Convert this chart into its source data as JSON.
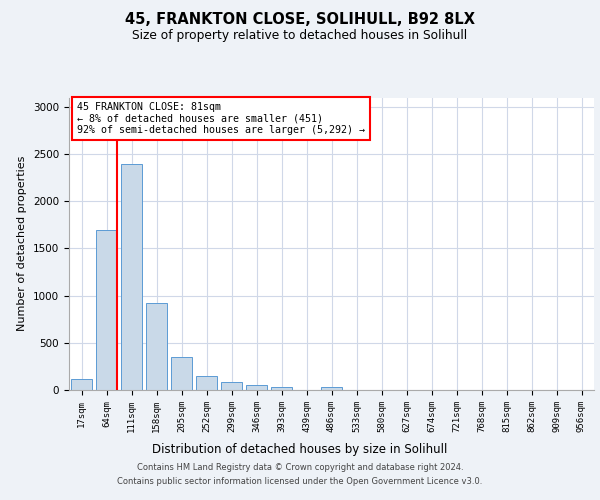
{
  "title_line1": "45, FRANKTON CLOSE, SOLIHULL, B92 8LX",
  "title_line2": "Size of property relative to detached houses in Solihull",
  "xlabel": "Distribution of detached houses by size in Solihull",
  "ylabel": "Number of detached properties",
  "bins": [
    "17sqm",
    "64sqm",
    "111sqm",
    "158sqm",
    "205sqm",
    "252sqm",
    "299sqm",
    "346sqm",
    "393sqm",
    "439sqm",
    "486sqm",
    "533sqm",
    "580sqm",
    "627sqm",
    "674sqm",
    "721sqm",
    "768sqm",
    "815sqm",
    "862sqm",
    "909sqm",
    "956sqm"
  ],
  "values": [
    120,
    1700,
    2390,
    920,
    350,
    150,
    80,
    55,
    35,
    0,
    35,
    0,
    0,
    0,
    0,
    0,
    0,
    0,
    0,
    0,
    0
  ],
  "bar_color": "#c9d9e8",
  "bar_edge_color": "#5b9bd5",
  "annotation_text_lines": [
    "45 FRANKTON CLOSE: 81sqm",
    "← 8% of detached houses are smaller (451)",
    "92% of semi-detached houses are larger (5,292) →"
  ],
  "annotation_box_color": "white",
  "annotation_box_edge_color": "red",
  "vline_color": "red",
  "vline_x": 1.42,
  "ylim": [
    0,
    3100
  ],
  "yticks": [
    0,
    500,
    1000,
    1500,
    2000,
    2500,
    3000
  ],
  "footer_line1": "Contains HM Land Registry data © Crown copyright and database right 2024.",
  "footer_line2": "Contains public sector information licensed under the Open Government Licence v3.0.",
  "bg_color": "#eef2f7",
  "plot_bg_color": "#ffffff",
  "grid_color": "#d0d8e8"
}
